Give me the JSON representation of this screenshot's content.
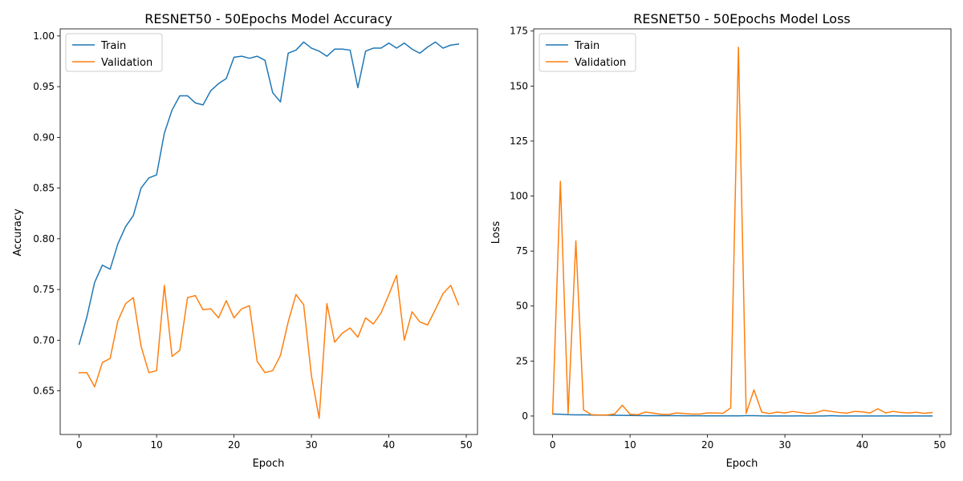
{
  "chart_data": [
    {
      "type": "line",
      "title": "RESNET50 - 50Epochs Model Accuracy",
      "xlabel": "Epoch",
      "ylabel": "Accuracy",
      "xlim": [
        -2.45,
        51.45
      ],
      "ylim": [
        0.607,
        1.007
      ],
      "xticks": [
        0,
        10,
        20,
        30,
        40,
        50
      ],
      "yticks": [
        0.65,
        0.7,
        0.75,
        0.8,
        0.85,
        0.9,
        0.95,
        1.0
      ],
      "ytick_labels": [
        "0.65",
        "0.70",
        "0.75",
        "0.80",
        "0.85",
        "0.90",
        "0.95",
        "1.00"
      ],
      "legend_position": "upper-left",
      "grid": false,
      "x": [
        0,
        1,
        2,
        3,
        4,
        5,
        6,
        7,
        8,
        9,
        10,
        11,
        12,
        13,
        14,
        15,
        16,
        17,
        18,
        19,
        20,
        21,
        22,
        23,
        24,
        25,
        26,
        27,
        28,
        29,
        30,
        31,
        32,
        33,
        34,
        35,
        36,
        37,
        38,
        39,
        40,
        41,
        42,
        43,
        44,
        45,
        46,
        47,
        48,
        49
      ],
      "series": [
        {
          "name": "Train",
          "color": "#1f77b4",
          "values": [
            0.696,
            0.723,
            0.757,
            0.774,
            0.77,
            0.795,
            0.812,
            0.823,
            0.85,
            0.86,
            0.863,
            0.904,
            0.927,
            0.941,
            0.941,
            0.934,
            0.932,
            0.946,
            0.953,
            0.958,
            0.979,
            0.98,
            0.978,
            0.98,
            0.976,
            0.944,
            0.935,
            0.983,
            0.986,
            0.994,
            0.988,
            0.985,
            0.98,
            0.987,
            0.987,
            0.986,
            0.949,
            0.985,
            0.988,
            0.988,
            0.993,
            0.988,
            0.993,
            0.987,
            0.983,
            0.989,
            0.994,
            0.988,
            0.991,
            0.992
          ]
        },
        {
          "name": "Validation",
          "color": "#ff7f0e",
          "values": [
            0.668,
            0.668,
            0.654,
            0.678,
            0.682,
            0.719,
            0.736,
            0.742,
            0.694,
            0.668,
            0.67,
            0.754,
            0.684,
            0.69,
            0.742,
            0.744,
            0.73,
            0.731,
            0.722,
            0.739,
            0.722,
            0.731,
            0.734,
            0.679,
            0.668,
            0.67,
            0.685,
            0.718,
            0.745,
            0.735,
            0.665,
            0.623,
            0.736,
            0.698,
            0.707,
            0.712,
            0.703,
            0.722,
            0.716,
            0.727,
            0.745,
            0.764,
            0.7,
            0.728,
            0.718,
            0.715,
            0.73,
            0.746,
            0.754,
            0.735
          ]
        }
      ]
    },
    {
      "type": "line",
      "title": "RESNET50 - 50Epochs Model Loss",
      "xlabel": "Epoch",
      "ylabel": "Loss",
      "xlim": [
        -2.45,
        51.45
      ],
      "ylim": [
        -8.4,
        176.0
      ],
      "xticks": [
        0,
        10,
        20,
        30,
        40,
        50
      ],
      "yticks": [
        0,
        25,
        50,
        75,
        100,
        125,
        150,
        175
      ],
      "ytick_labels": [
        "0",
        "25",
        "50",
        "75",
        "100",
        "125",
        "150",
        "175"
      ],
      "legend_position": "upper-left",
      "grid": false,
      "x": [
        0,
        1,
        2,
        3,
        4,
        5,
        6,
        7,
        8,
        9,
        10,
        11,
        12,
        13,
        14,
        15,
        16,
        17,
        18,
        19,
        20,
        21,
        22,
        23,
        24,
        25,
        26,
        27,
        28,
        29,
        30,
        31,
        32,
        33,
        34,
        35,
        36,
        37,
        38,
        39,
        40,
        41,
        42,
        43,
        44,
        45,
        46,
        47,
        48,
        49
      ],
      "series": [
        {
          "name": "Train",
          "color": "#1f77b4",
          "values": [
            0.92,
            0.78,
            0.6,
            0.55,
            0.58,
            0.45,
            0.4,
            0.4,
            0.33,
            0.3,
            0.27,
            0.22,
            0.17,
            0.15,
            0.15,
            0.15,
            0.16,
            0.14,
            0.12,
            0.11,
            0.06,
            0.06,
            0.06,
            0.06,
            0.07,
            0.15,
            0.17,
            0.05,
            0.04,
            0.02,
            0.03,
            0.04,
            0.06,
            0.03,
            0.04,
            0.04,
            0.15,
            0.04,
            0.03,
            0.03,
            0.02,
            0.03,
            0.02,
            0.04,
            0.05,
            0.03,
            0.02,
            0.03,
            0.02,
            0.02
          ]
        },
        {
          "name": "Validation",
          "color": "#ff7f0e",
          "values": [
            0.9,
            106.7,
            1.0,
            79.6,
            2.8,
            0.6,
            0.5,
            0.5,
            0.9,
            4.9,
            0.8,
            0.6,
            1.8,
            1.3,
            0.8,
            0.7,
            1.4,
            1.1,
            0.9,
            0.9,
            1.4,
            1.4,
            1.2,
            3.7,
            167.6,
            1.2,
            11.9,
            1.8,
            1.1,
            1.8,
            1.4,
            2.1,
            1.6,
            1.1,
            1.5,
            2.6,
            2.1,
            1.6,
            1.3,
            2.1,
            1.9,
            1.4,
            3.3,
            1.4,
            2.1,
            1.6,
            1.4,
            1.7,
            1.2,
            1.6
          ]
        }
      ]
    }
  ]
}
